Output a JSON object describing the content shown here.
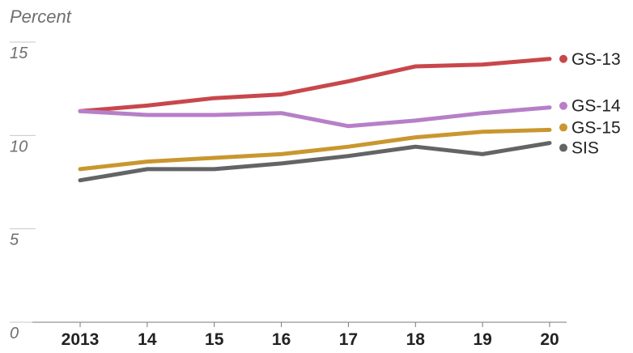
{
  "chart_data": {
    "type": "line",
    "unit_label": "Percent",
    "x": [
      2013,
      2014,
      2015,
      2016,
      2017,
      2018,
      2019,
      2020
    ],
    "x_tick_labels": [
      "2013",
      "14",
      "15",
      "16",
      "17",
      "18",
      "19",
      "20"
    ],
    "y_ticks": [
      0,
      5,
      10,
      15
    ],
    "y_tick_labels": [
      "0",
      "5",
      "10",
      "15"
    ],
    "ylim": [
      0,
      15
    ],
    "grid": false,
    "legend": "direct labels at right end of lines",
    "series": [
      {
        "name": "GS-13",
        "color": "#c8474b",
        "values": [
          11.3,
          11.6,
          12.0,
          12.2,
          12.9,
          13.7,
          13.8,
          14.1
        ]
      },
      {
        "name": "GS-14",
        "color": "#b77fc8",
        "values": [
          11.3,
          11.1,
          11.1,
          11.2,
          10.5,
          10.8,
          11.2,
          11.5
        ]
      },
      {
        "name": "GS-15",
        "color": "#c9972f",
        "values": [
          8.2,
          8.6,
          8.8,
          9.0,
          9.4,
          9.9,
          10.2,
          10.3
        ]
      },
      {
        "name": "SIS",
        "color": "#636466",
        "values": [
          7.6,
          8.2,
          8.2,
          8.5,
          8.9,
          9.4,
          9.0,
          9.6
        ]
      }
    ]
  }
}
